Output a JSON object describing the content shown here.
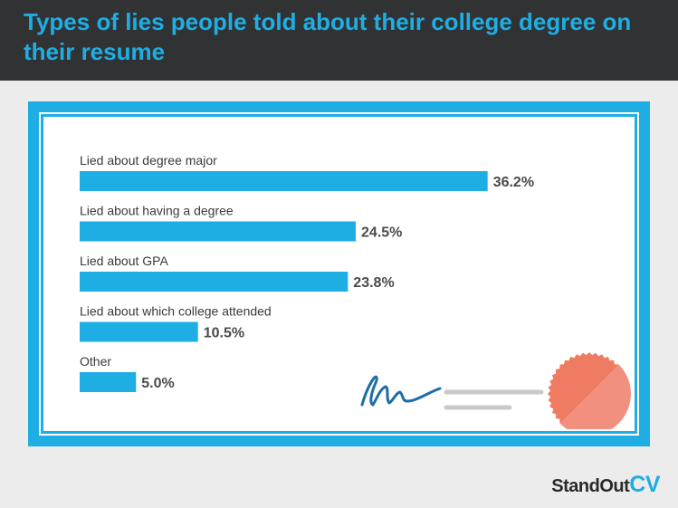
{
  "header": {
    "title": "Types of lies people told about their college degree on their resume"
  },
  "chart_data": {
    "type": "bar",
    "orientation": "horizontal",
    "categories": [
      "Lied about degree major",
      "Lied about having a degree",
      "Lied about GPA",
      "Lied about which college attended",
      "Other"
    ],
    "values": [
      36.2,
      24.5,
      23.8,
      10.5,
      5.0
    ],
    "value_labels": [
      "36.2%",
      "24.5%",
      "23.8%",
      "10.5%",
      "5.0%"
    ],
    "unit": "%",
    "bar_color": "#1eaee4",
    "grid": false
  },
  "brand": {
    "part1": "StandOut",
    "part2": "CV"
  },
  "colors": {
    "header_bg": "#313234",
    "accent": "#1eaee4",
    "seal": "#ee7b62"
  }
}
